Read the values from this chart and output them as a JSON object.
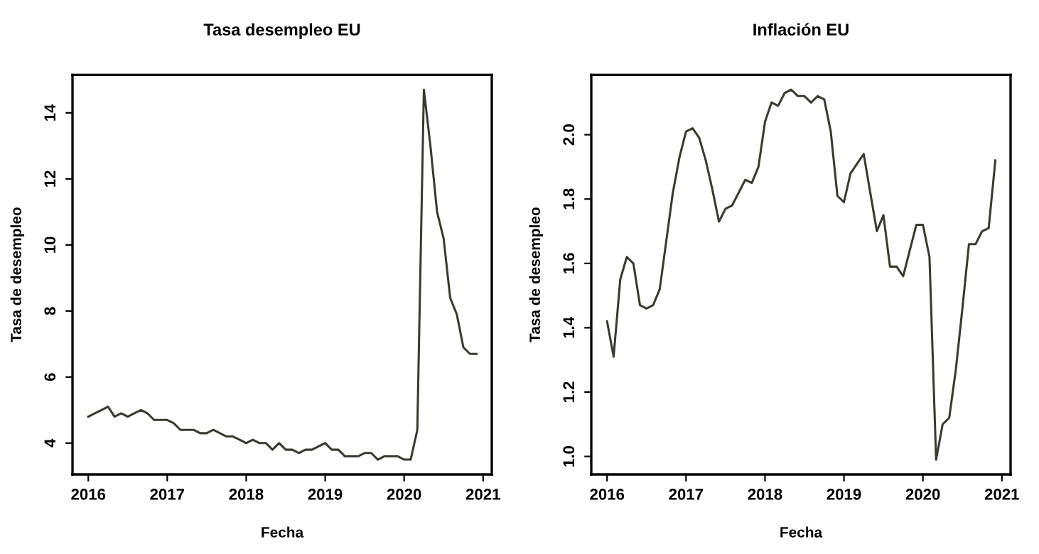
{
  "chart_data": [
    {
      "type": "line",
      "title": "Tasa desempleo EU",
      "xlabel": "Fecha",
      "ylabel": "Tasa de desempleo",
      "x": [
        2016.0,
        2016.083,
        2016.167,
        2016.25,
        2016.333,
        2016.417,
        2016.5,
        2016.583,
        2016.667,
        2016.75,
        2016.833,
        2016.917,
        2017.0,
        2017.083,
        2017.167,
        2017.25,
        2017.333,
        2017.417,
        2017.5,
        2017.583,
        2017.667,
        2017.75,
        2017.833,
        2017.917,
        2018.0,
        2018.083,
        2018.167,
        2018.25,
        2018.333,
        2018.417,
        2018.5,
        2018.583,
        2018.667,
        2018.75,
        2018.833,
        2018.917,
        2019.0,
        2019.083,
        2019.167,
        2019.25,
        2019.333,
        2019.417,
        2019.5,
        2019.583,
        2019.667,
        2019.75,
        2019.833,
        2019.917,
        2020.0,
        2020.083,
        2020.167,
        2020.25,
        2020.333,
        2020.417,
        2020.5,
        2020.583,
        2020.667,
        2020.75,
        2020.833,
        2020.917
      ],
      "series": [
        {
          "color": "#3b3a2c",
          "values": [
            4.8,
            4.9,
            5.0,
            5.1,
            4.8,
            4.9,
            4.8,
            4.9,
            5.0,
            4.9,
            4.7,
            4.7,
            4.7,
            4.6,
            4.4,
            4.4,
            4.4,
            4.3,
            4.3,
            4.4,
            4.3,
            4.2,
            4.2,
            4.1,
            4.0,
            4.1,
            4.0,
            4.0,
            3.8,
            4.0,
            3.8,
            3.8,
            3.7,
            3.8,
            3.8,
            3.9,
            4.0,
            3.8,
            3.8,
            3.6,
            3.6,
            3.6,
            3.7,
            3.7,
            3.5,
            3.6,
            3.6,
            3.6,
            3.5,
            3.5,
            4.4,
            14.7,
            13.0,
            11.0,
            10.2,
            8.4,
            7.9,
            6.9,
            6.7,
            6.7
          ]
        }
      ],
      "xlim": [
        2015.8,
        2021.11
      ],
      "ylim": [
        3.05,
        15.15
      ],
      "xticks": [
        2016,
        2017,
        2018,
        2019,
        2020,
        2021
      ],
      "yticks": [
        4,
        6,
        8,
        10,
        12,
        14
      ],
      "grid": false
    },
    {
      "type": "line",
      "title": "Inflación EU",
      "xlabel": "Fecha",
      "ylabel": "Tasa de desempleo",
      "x": [
        2016.0,
        2016.083,
        2016.167,
        2016.25,
        2016.333,
        2016.417,
        2016.5,
        2016.583,
        2016.667,
        2016.75,
        2016.833,
        2016.917,
        2017.0,
        2017.083,
        2017.167,
        2017.25,
        2017.333,
        2017.417,
        2017.5,
        2017.583,
        2017.667,
        2017.75,
        2017.833,
        2017.917,
        2018.0,
        2018.083,
        2018.167,
        2018.25,
        2018.333,
        2018.417,
        2018.5,
        2018.583,
        2018.667,
        2018.75,
        2018.833,
        2018.917,
        2019.0,
        2019.083,
        2019.167,
        2019.25,
        2019.333,
        2019.417,
        2019.5,
        2019.583,
        2019.667,
        2019.75,
        2019.833,
        2019.917,
        2020.0,
        2020.083,
        2020.167,
        2020.25,
        2020.333,
        2020.417,
        2020.5,
        2020.583,
        2020.667,
        2020.75,
        2020.833,
        2020.917
      ],
      "series": [
        {
          "color": "#3b3a2c",
          "values": [
            1.42,
            1.31,
            1.55,
            1.62,
            1.6,
            1.47,
            1.46,
            1.47,
            1.52,
            1.67,
            1.82,
            1.93,
            2.01,
            2.02,
            1.99,
            1.92,
            1.83,
            1.73,
            1.77,
            1.78,
            1.82,
            1.86,
            1.85,
            1.9,
            2.04,
            2.1,
            2.09,
            2.13,
            2.14,
            2.12,
            2.12,
            2.1,
            2.12,
            2.11,
            2.01,
            1.81,
            1.79,
            1.88,
            1.91,
            1.94,
            1.82,
            1.7,
            1.75,
            1.59,
            1.59,
            1.56,
            1.64,
            1.72,
            1.72,
            1.62,
            0.99,
            1.1,
            1.12,
            1.27,
            1.46,
            1.66,
            1.66,
            1.7,
            1.71,
            1.92
          ]
        }
      ],
      "xlim": [
        2015.8,
        2021.11
      ],
      "ylim": [
        0.944,
        2.186
      ],
      "xticks": [
        2016,
        2017,
        2018,
        2019,
        2020,
        2021
      ],
      "yticks": [
        {
          "value": 1,
          "label": "1.0"
        },
        {
          "value": 1.2,
          "label": "1.2"
        },
        {
          "value": 1.4,
          "label": "1.4"
        },
        {
          "value": 1.6,
          "label": "1.6"
        },
        {
          "value": 1.8,
          "label": "1.8"
        },
        {
          "value": 2,
          "label": "2.0"
        }
      ],
      "grid": false
    }
  ]
}
